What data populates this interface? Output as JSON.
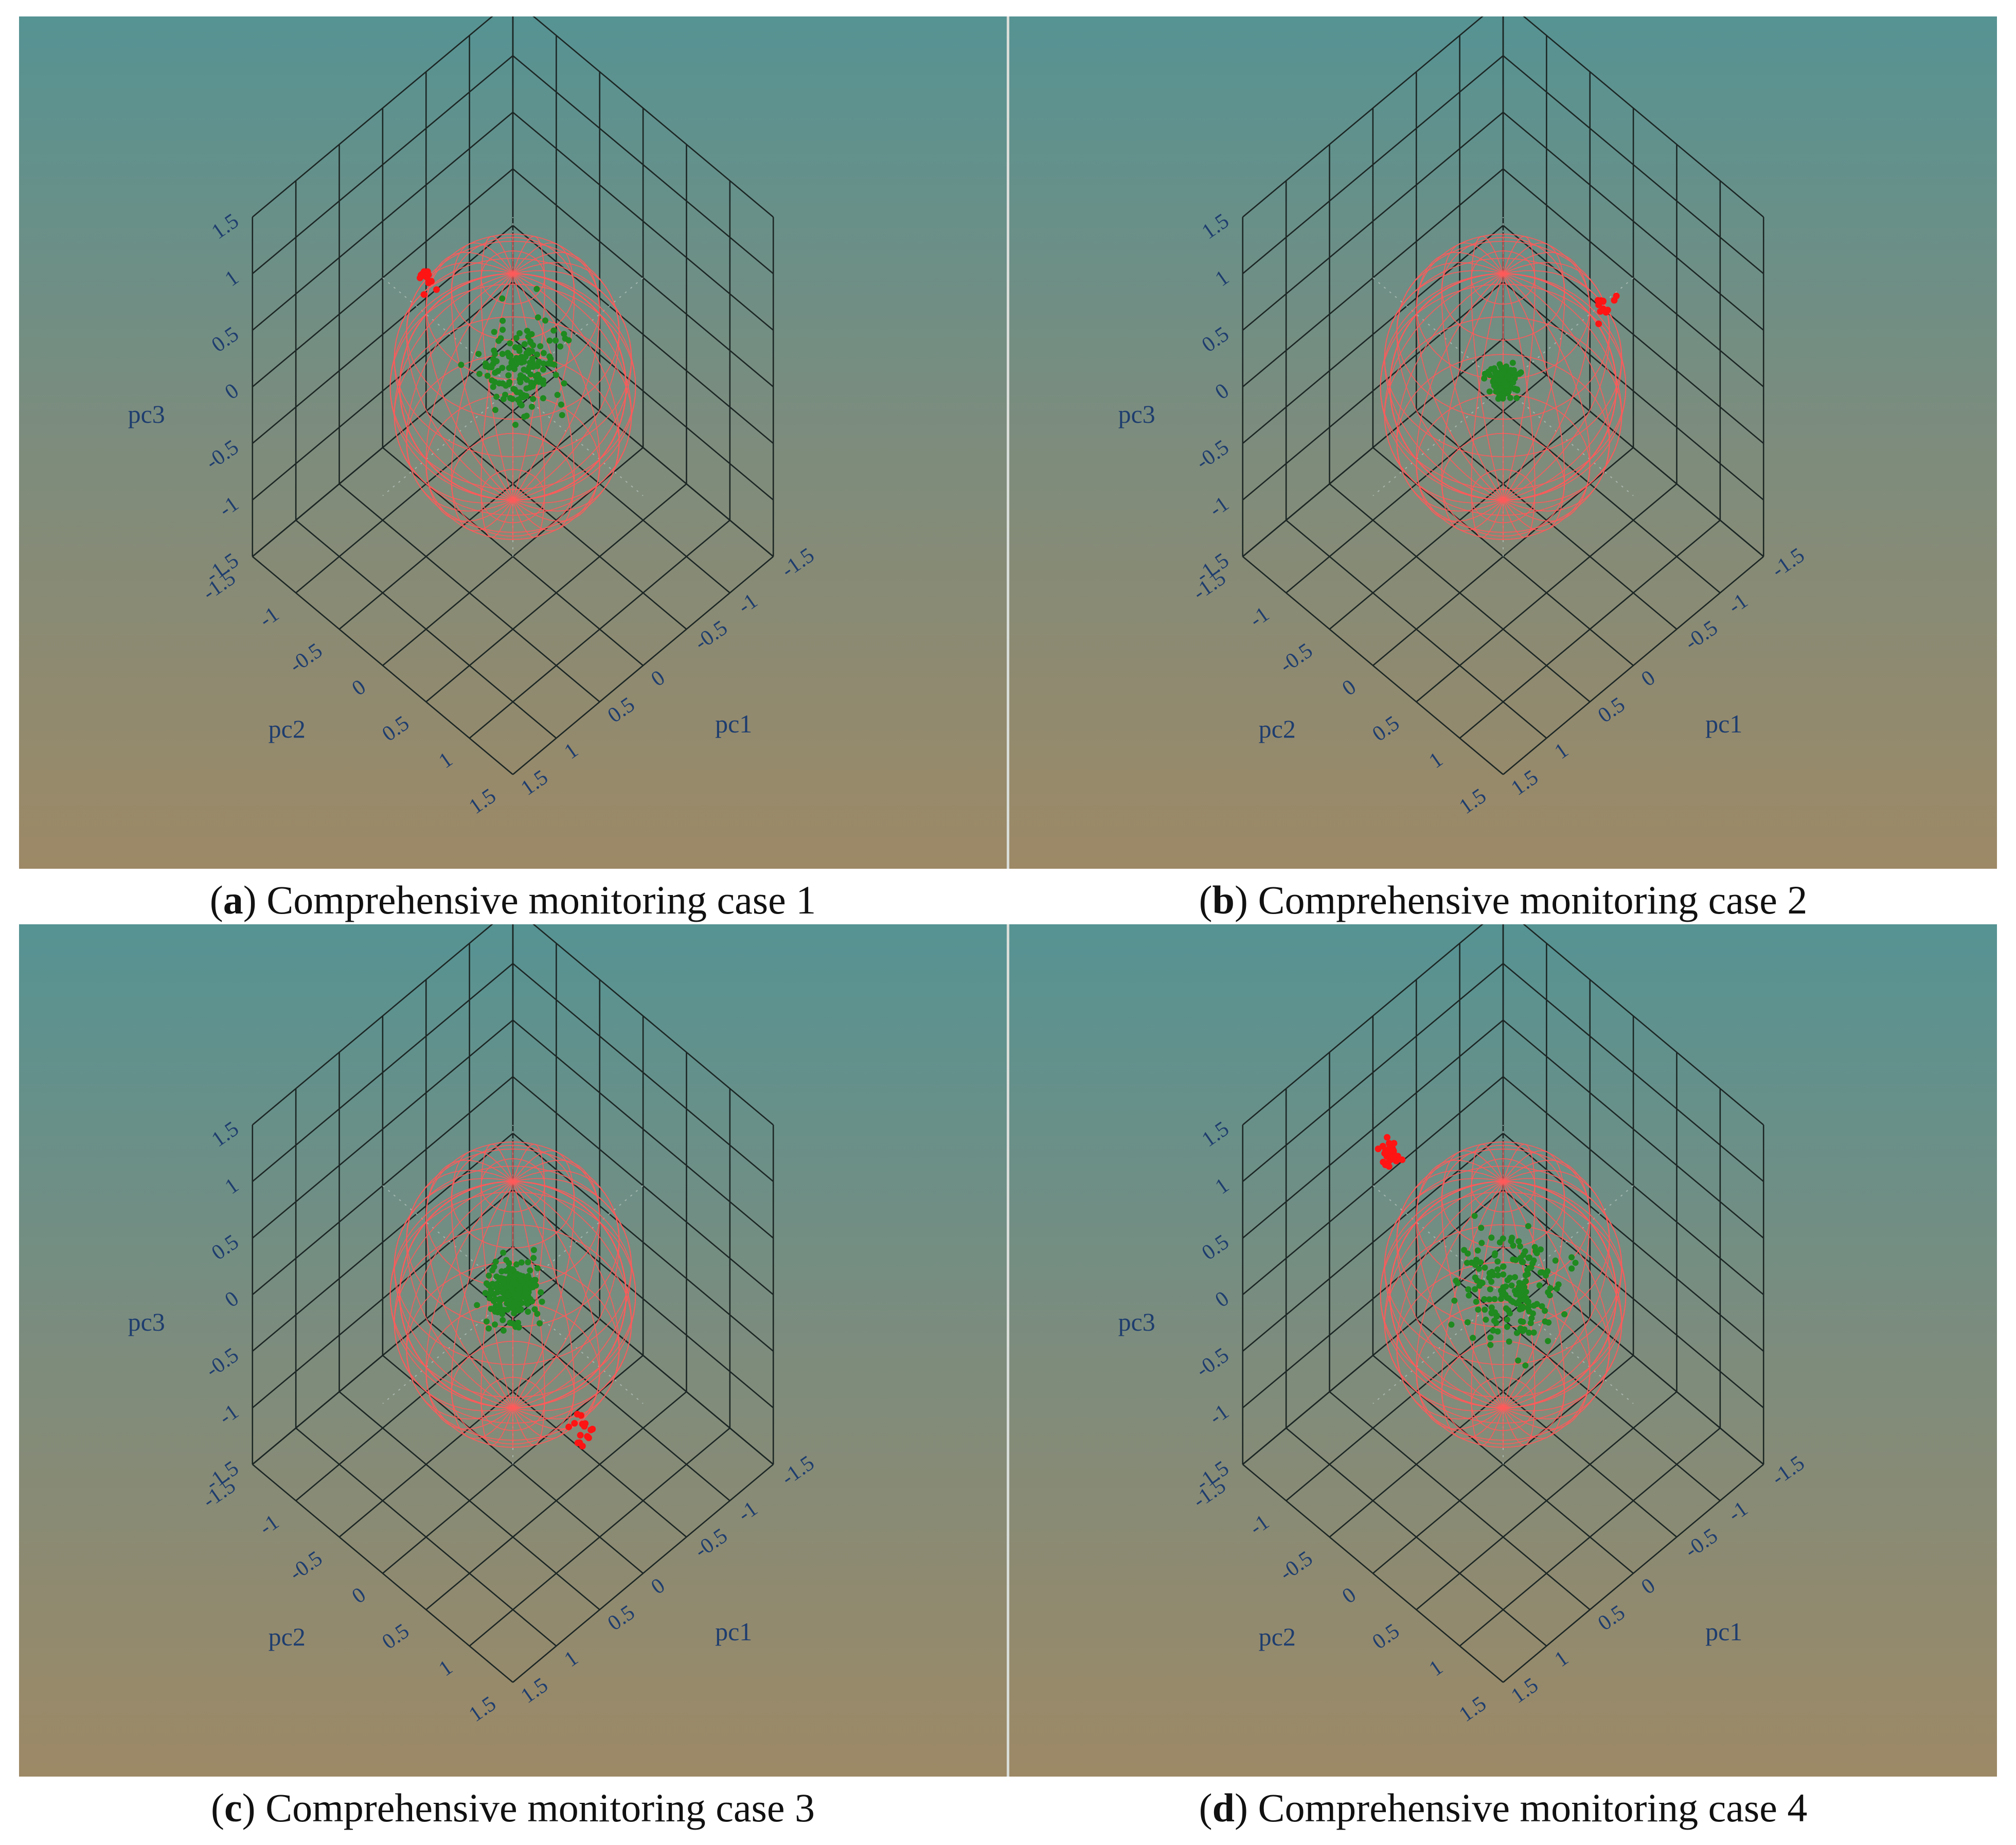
{
  "figure": {
    "panels": [
      {
        "id": "a",
        "caption_letter": "a",
        "caption_text": "Comprehensive monitoring case 1"
      },
      {
        "id": "b",
        "caption_letter": "b",
        "caption_text": "Comprehensive monitoring case 2"
      },
      {
        "id": "c",
        "caption_letter": "c",
        "caption_text": "Comprehensive monitoring case 3"
      },
      {
        "id": "d",
        "caption_letter": "d",
        "caption_text": "Comprehensive monitoring case 4"
      }
    ],
    "colors": {
      "grid": "#1c2624",
      "sphere": "#ff5a5a",
      "normal_points": "#1f8a1f",
      "fault_points": "#ff1414",
      "tick_text": "#1e3d6e"
    }
  },
  "chart_data": [
    {
      "type": "scatter",
      "projection": "3d",
      "xlabel": "pc1",
      "ylabel": "pc2",
      "zlabel": "pc3",
      "xlim": [
        -1.5,
        1.5
      ],
      "ylim": [
        -1.5,
        1.5
      ],
      "zlim": [
        -1.5,
        1.5
      ],
      "ticks": [
        "-1.5",
        "-1",
        "-0.5",
        "0",
        "0.5",
        "1",
        "1.5"
      ],
      "grid": true,
      "control_sphere": {
        "center": [
          0,
          0,
          0
        ],
        "radius": 1
      },
      "series": [
        {
          "role": "normal",
          "color": "#1f8a1f",
          "center": [
            -0.05,
            0.05,
            0.15
          ],
          "spread": [
            0.3,
            0.3,
            0.25
          ],
          "count": 150
        },
        {
          "role": "fault",
          "color": "#ff1414",
          "center": [
            -0.45,
            -1.45,
            -0.25
          ],
          "spread": [
            0.08,
            0.08,
            0.06
          ],
          "count": 14
        }
      ]
    },
    {
      "type": "scatter",
      "projection": "3d",
      "xlabel": "pc1",
      "ylabel": "pc2",
      "zlabel": "pc3",
      "xlim": [
        -1.5,
        1.5
      ],
      "ylim": [
        -1.5,
        1.5
      ],
      "zlim": [
        -1.5,
        1.5
      ],
      "ticks": [
        "-1.5",
        "-1",
        "-0.5",
        "0",
        "0.5",
        "1",
        "1.5"
      ],
      "grid": true,
      "control_sphere": {
        "center": [
          0,
          0,
          0
        ],
        "radius": 1
      },
      "series": [
        {
          "role": "normal",
          "color": "#1f8a1f",
          "center": [
            0,
            0,
            0.05
          ],
          "spread": [
            0.1,
            0.1,
            0.08
          ],
          "count": 160
        },
        {
          "role": "fault",
          "color": "#ff1414",
          "center": [
            -1.45,
            -0.25,
            -0.35
          ],
          "spread": [
            0.1,
            0.1,
            0.08
          ],
          "count": 12
        }
      ]
    },
    {
      "type": "scatter",
      "projection": "3d",
      "xlabel": "pc1",
      "ylabel": "pc2",
      "zlabel": "pc3",
      "xlim": [
        -1.5,
        1.5
      ],
      "ylim": [
        -1.5,
        1.5
      ],
      "zlim": [
        -1.5,
        1.5
      ],
      "ticks": [
        "-1.5",
        "-1",
        "-0.5",
        "0",
        "0.5",
        "1",
        "1.5"
      ],
      "grid": true,
      "control_sphere": {
        "center": [
          0,
          0,
          0
        ],
        "radius": 1
      },
      "series": [
        {
          "role": "normal",
          "color": "#1f8a1f",
          "center": [
            0,
            0,
            0.02
          ],
          "spread": [
            0.2,
            0.2,
            0.15
          ],
          "count": 220
        },
        {
          "role": "fault",
          "color": "#ff1414",
          "center": [
            -0.6,
            0.2,
            -1.45
          ],
          "spread": [
            0.12,
            0.12,
            0.06
          ],
          "count": 15
        }
      ]
    },
    {
      "type": "scatter",
      "projection": "3d",
      "xlabel": "pc1",
      "ylabel": "pc2",
      "zlabel": "pc3",
      "xlim": [
        -1.5,
        1.5
      ],
      "ylim": [
        -1.5,
        1.5
      ],
      "zlim": [
        -1.5,
        1.5
      ],
      "ticks": [
        "-1.5",
        "-1",
        "-0.5",
        "0",
        "0.5",
        "1",
        "1.5"
      ],
      "grid": true,
      "control_sphere": {
        "center": [
          0,
          0,
          0
        ],
        "radius": 1
      },
      "series": [
        {
          "role": "normal",
          "color": "#1f8a1f",
          "center": [
            -0.1,
            -0.05,
            -0.05
          ],
          "spread": [
            0.35,
            0.35,
            0.3
          ],
          "count": 170
        },
        {
          "role": "fault",
          "color": "#ff1414",
          "center": [
            0.3,
            -1.0,
            0.8
          ],
          "spread": [
            0.08,
            0.08,
            0.1
          ],
          "count": 32
        }
      ]
    }
  ]
}
